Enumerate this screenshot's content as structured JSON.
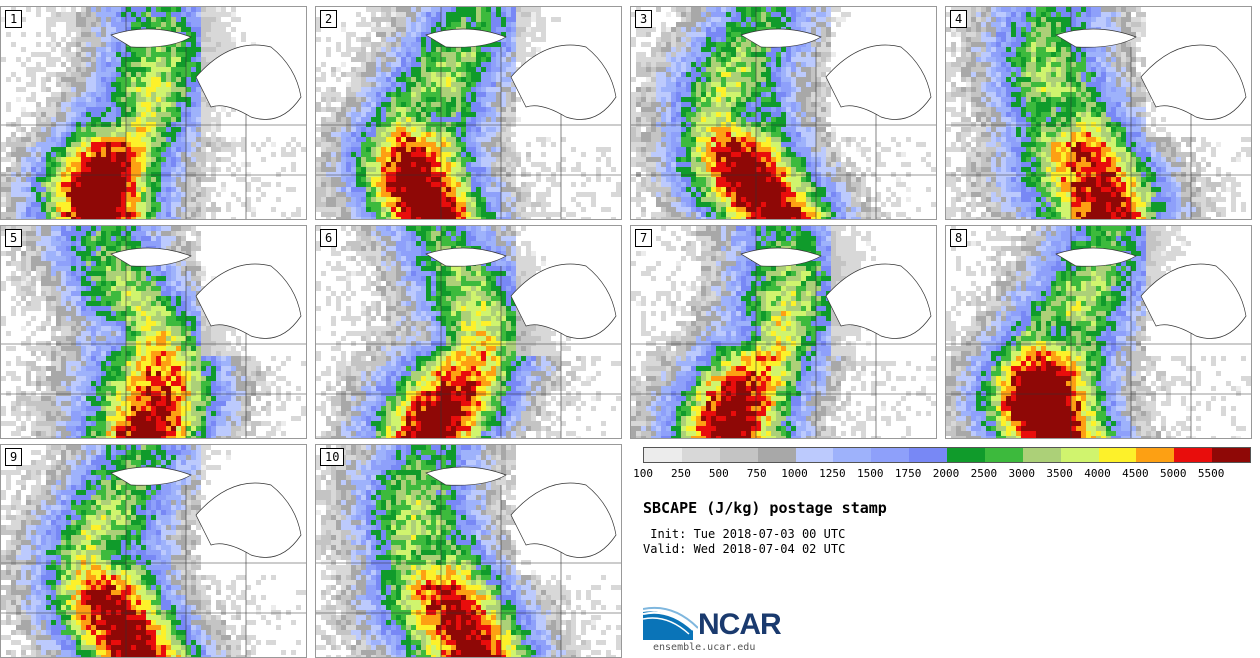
{
  "panels": [
    {
      "label": "1",
      "hot": 0.55,
      "seed": 1
    },
    {
      "label": "2",
      "hot": 0.45,
      "seed": 2
    },
    {
      "label": "3",
      "hot": 0.7,
      "seed": 3
    },
    {
      "label": "4",
      "hot": 0.6,
      "seed": 4
    },
    {
      "label": "5",
      "hot": 0.4,
      "seed": 5
    },
    {
      "label": "6",
      "hot": 0.5,
      "seed": 6
    },
    {
      "label": "7",
      "hot": 0.3,
      "seed": 7
    },
    {
      "label": "8",
      "hot": 0.7,
      "seed": 8
    },
    {
      "label": "9",
      "hot": 0.45,
      "seed": 9
    },
    {
      "label": "10",
      "hot": 0.65,
      "seed": 10
    }
  ],
  "colorbar": {
    "colors": [
      "#ececec",
      "#d8d8d8",
      "#c4c4c4",
      "#a8a8a8",
      "#bccafd",
      "#9eb2fb",
      "#8ea0fa",
      "#7888f5",
      "#109b2b",
      "#3dba3d",
      "#acd078",
      "#d0f46e",
      "#fdf12a",
      "#fda013",
      "#e80d0c",
      "#8f0806"
    ],
    "ticks": [
      "100",
      "250",
      "500",
      "750",
      "1000",
      "1250",
      "1500",
      "1750",
      "2000",
      "2500",
      "3000",
      "3500",
      "4000",
      "4500",
      "5000",
      "5500"
    ]
  },
  "title": "SBCAPE (J/kg) postage stamp",
  "init": " Init: Tue 2018-07-03 00 UTC",
  "valid": "Valid: Wed 2018-07-04 02 UTC",
  "logo_text": "NCAR",
  "url": "ensemble.ucar.edu"
}
